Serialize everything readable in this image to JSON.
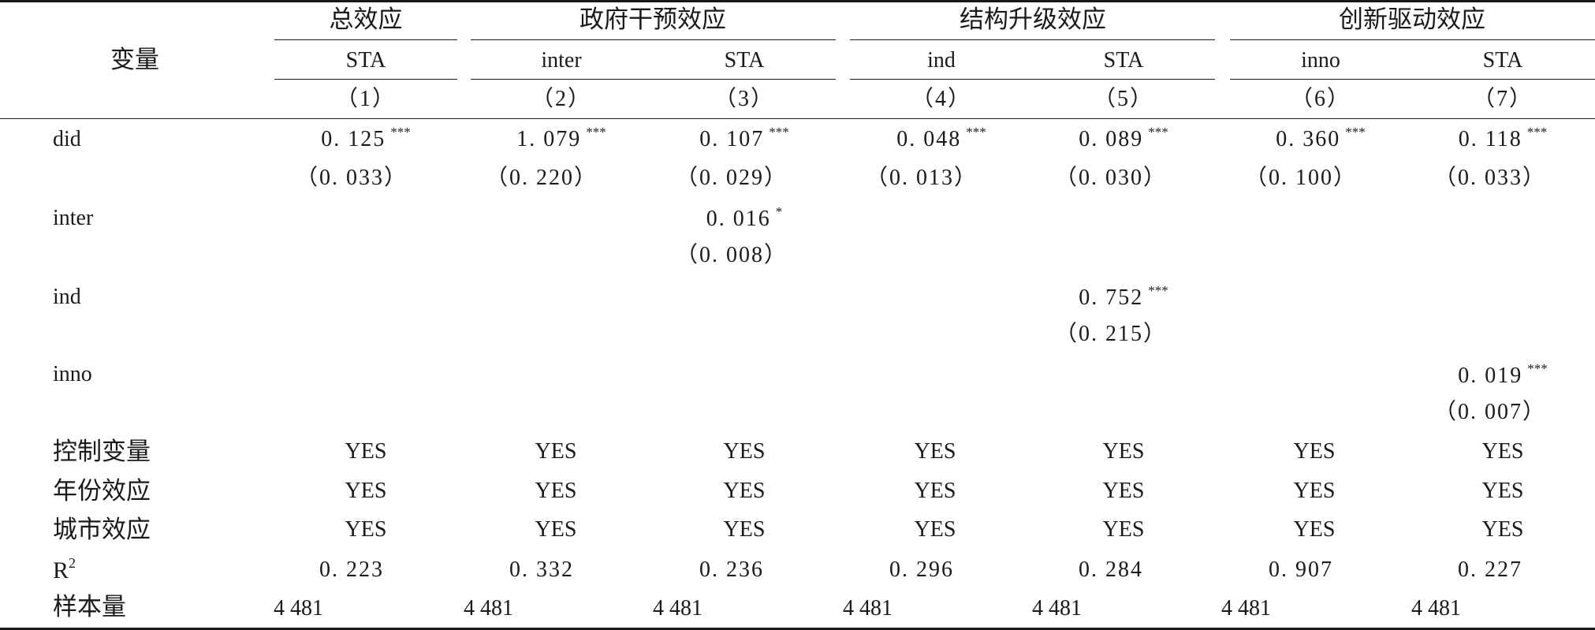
{
  "table": {
    "header": {
      "variable_label": "变量",
      "groups": [
        "总效应",
        "政府干预效应",
        "结构升级效应",
        "创新驱动效应"
      ],
      "dep_vars": [
        "STA",
        "inter",
        "STA",
        "ind",
        "STA",
        "inno",
        "STA"
      ],
      "col_numbers": [
        "（1）",
        "（2）",
        "（3）",
        "（4）",
        "（5）",
        "（6）",
        "（7）"
      ]
    },
    "rows": {
      "did": {
        "label": "did",
        "coefs": [
          "0. 125",
          "1. 079",
          "0. 107",
          "0. 048",
          "0. 089",
          "0. 360",
          "0. 118"
        ],
        "stars": [
          "***",
          "***",
          "***",
          "***",
          "***",
          "***",
          "***"
        ],
        "ses": [
          "（0. 033）",
          "（0. 220）",
          "（0. 029）",
          "（0. 013）",
          "（0. 030）",
          "（0. 100）",
          "（0. 033）"
        ]
      },
      "inter": {
        "label": "inter",
        "coef": "0. 016",
        "star": "*",
        "se": "（0. 008）"
      },
      "ind": {
        "label": "ind",
        "coef": "0. 752",
        "star": "***",
        "se": "（0. 215）"
      },
      "inno": {
        "label": "inno",
        "coef": "0. 019",
        "star": "***",
        "se": "（0. 007）"
      },
      "controls": {
        "label": "控制变量",
        "values": [
          "YES",
          "YES",
          "YES",
          "YES",
          "YES",
          "YES",
          "YES"
        ]
      },
      "year_fe": {
        "label": "年份效应",
        "values": [
          "YES",
          "YES",
          "YES",
          "YES",
          "YES",
          "YES",
          "YES"
        ]
      },
      "city_fe": {
        "label": "城市效应",
        "values": [
          "YES",
          "YES",
          "YES",
          "YES",
          "YES",
          "YES",
          "YES"
        ]
      },
      "r2": {
        "label": "R",
        "label_sup": "2",
        "values": [
          "0. 223",
          "0. 332",
          "0. 236",
          "0. 296",
          "0. 284",
          "0. 907",
          "0. 227"
        ]
      },
      "n": {
        "label": "样本量",
        "values": [
          "4 481",
          "4 481",
          "4 481",
          "4 481",
          "4 481",
          "4 481",
          "4 481"
        ]
      }
    }
  }
}
